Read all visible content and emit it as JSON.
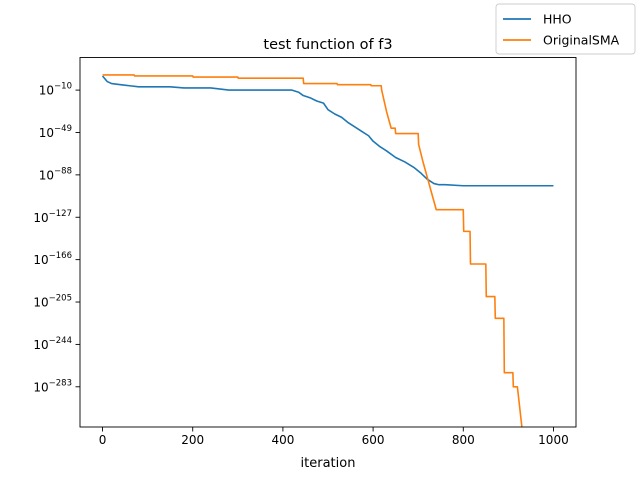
{
  "chart_data": {
    "type": "line",
    "title": "test function of f3",
    "xlabel": "iteration",
    "ylabel": "",
    "yscale": "log",
    "xlim": [
      -50,
      1050
    ],
    "ylim_exp": [
      -320,
      20
    ],
    "xticks": [
      0,
      200,
      400,
      600,
      800,
      1000
    ],
    "yticks": [
      {
        "base": "10",
        "exp": "−10",
        "value": -10
      },
      {
        "base": "10",
        "exp": "−49",
        "value": -49
      },
      {
        "base": "10",
        "exp": "−88",
        "value": -88
      },
      {
        "base": "10",
        "exp": "−127",
        "value": -127
      },
      {
        "base": "10",
        "exp": "−166",
        "value": -166
      },
      {
        "base": "10",
        "exp": "−205",
        "value": -205
      },
      {
        "base": "10",
        "exp": "−244",
        "value": -244
      },
      {
        "base": "10",
        "exp": "−283",
        "value": -283
      }
    ],
    "grid": false,
    "legend_position": "top-right",
    "series": [
      {
        "name": "HHO",
        "color": "#1f77b4",
        "x": [
          0,
          10,
          20,
          40,
          60,
          80,
          100,
          120,
          150,
          180,
          200,
          240,
          280,
          300,
          330,
          360,
          390,
          420,
          435,
          445,
          460,
          475,
          490,
          500,
          515,
          530,
          545,
          560,
          575,
          590,
          600,
          615,
          630,
          650,
          670,
          690,
          705,
          720,
          735,
          745,
          760,
          800,
          850,
          900,
          950,
          1000
        ],
        "y_exp": [
          3,
          -2,
          -4,
          -5,
          -6,
          -7,
          -7,
          -7,
          -7,
          -8,
          -8,
          -8,
          -10,
          -10,
          -10,
          -10,
          -10,
          -10,
          -12,
          -15,
          -17,
          -20,
          -22,
          -28,
          -32,
          -35,
          -40,
          -44,
          -48,
          -52,
          -57,
          -62,
          -66,
          -72,
          -76,
          -81,
          -86,
          -92,
          -96,
          -97,
          -97,
          -98,
          -98,
          -98,
          -98,
          -98
        ]
      },
      {
        "name": "OriginalSMA",
        "color": "#ff7f0e",
        "x": [
          0,
          70,
          71,
          200,
          201,
          300,
          301,
          445,
          446,
          520,
          521,
          595,
          596,
          618,
          619,
          630,
          640,
          649,
          650,
          700,
          701,
          710,
          720,
          730,
          740,
          741,
          800,
          801,
          815,
          816,
          850,
          851,
          870,
          871,
          890,
          891,
          910,
          911,
          920,
          930,
          932
        ],
        "y_exp": [
          4,
          4,
          3,
          3,
          2,
          2,
          1,
          1,
          -4,
          -4,
          -5,
          -5,
          -6,
          -6,
          -10,
          -30,
          -45,
          -45,
          -50,
          -50,
          -60,
          -75,
          -90,
          -105,
          -120,
          -120,
          -120,
          -140,
          -140,
          -170,
          -170,
          -200,
          -200,
          -220,
          -220,
          -270,
          -270,
          -283,
          -283,
          -320,
          -330
        ]
      }
    ]
  }
}
